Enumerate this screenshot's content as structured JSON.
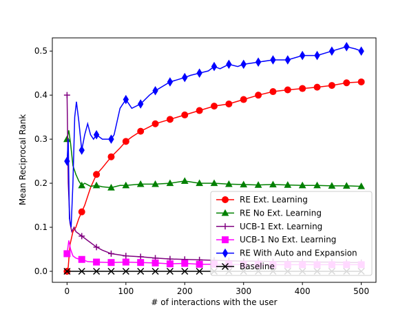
{
  "chart_data": {
    "type": "line",
    "xlabel": "# of interactions with the user",
    "ylabel": "Mean Reciprocal Rank",
    "xlim": [
      -25,
      525
    ],
    "ylim": [
      -0.025,
      0.53
    ],
    "xticks": [
      0,
      100,
      200,
      300,
      400,
      500
    ],
    "yticks": [
      0.0,
      0.1,
      0.2,
      0.3,
      0.4,
      0.5
    ],
    "xtick_labels": [
      "0",
      "100",
      "200",
      "300",
      "400",
      "500"
    ],
    "ytick_labels": [
      "0.0",
      "0.1",
      "0.2",
      "0.3",
      "0.4",
      "0.5"
    ],
    "legend_position": "lower-right",
    "series": [
      {
        "name": "RE Ext. Learning",
        "color": "#ff0000",
        "marker": "circle",
        "points": [
          [
            0,
            0
          ],
          [
            2,
            0.01
          ],
          [
            5,
            0.06
          ],
          [
            10,
            0.09
          ],
          [
            15,
            0.1
          ],
          [
            20,
            0.12
          ],
          [
            25,
            0.135
          ],
          [
            30,
            0.15
          ],
          [
            40,
            0.19
          ],
          [
            50,
            0.22
          ],
          [
            60,
            0.235
          ],
          [
            75,
            0.26
          ],
          [
            90,
            0.28
          ],
          [
            100,
            0.295
          ],
          [
            110,
            0.305
          ],
          [
            125,
            0.318
          ],
          [
            140,
            0.328
          ],
          [
            150,
            0.335
          ],
          [
            175,
            0.345
          ],
          [
            200,
            0.355
          ],
          [
            225,
            0.365
          ],
          [
            250,
            0.375
          ],
          [
            275,
            0.38
          ],
          [
            300,
            0.39
          ],
          [
            325,
            0.4
          ],
          [
            350,
            0.408
          ],
          [
            375,
            0.412
          ],
          [
            400,
            0.415
          ],
          [
            425,
            0.418
          ],
          [
            450,
            0.422
          ],
          [
            475,
            0.428
          ],
          [
            500,
            0.43
          ]
        ]
      },
      {
        "name": "RE No Ext. Learning",
        "color": "#008000",
        "marker": "triangle",
        "points": [
          [
            0,
            0.3
          ],
          [
            3,
            0.32
          ],
          [
            6,
            0.29
          ],
          [
            10,
            0.24
          ],
          [
            15,
            0.22
          ],
          [
            20,
            0.205
          ],
          [
            25,
            0.195
          ],
          [
            30,
            0.2
          ],
          [
            40,
            0.193
          ],
          [
            50,
            0.195
          ],
          [
            60,
            0.192
          ],
          [
            75,
            0.19
          ],
          [
            90,
            0.195
          ],
          [
            100,
            0.195
          ],
          [
            125,
            0.198
          ],
          [
            150,
            0.198
          ],
          [
            175,
            0.2
          ],
          [
            200,
            0.205
          ],
          [
            225,
            0.2
          ],
          [
            250,
            0.2
          ],
          [
            275,
            0.198
          ],
          [
            300,
            0.197
          ],
          [
            325,
            0.196
          ],
          [
            350,
            0.197
          ],
          [
            375,
            0.196
          ],
          [
            400,
            0.195
          ],
          [
            425,
            0.195
          ],
          [
            450,
            0.194
          ],
          [
            475,
            0.194
          ],
          [
            500,
            0.193
          ]
        ]
      },
      {
        "name": "UCB-1 Ext. Learning",
        "color": "#800080",
        "marker": "plus",
        "points": [
          [
            0,
            0.4
          ],
          [
            2,
            0.2
          ],
          [
            5,
            0.11
          ],
          [
            8,
            0.09
          ],
          [
            12,
            0.1
          ],
          [
            15,
            0.09
          ],
          [
            20,
            0.085
          ],
          [
            25,
            0.08
          ],
          [
            30,
            0.075
          ],
          [
            40,
            0.065
          ],
          [
            50,
            0.055
          ],
          [
            60,
            0.048
          ],
          [
            75,
            0.04
          ],
          [
            90,
            0.037
          ],
          [
            100,
            0.035
          ],
          [
            125,
            0.033
          ],
          [
            150,
            0.03
          ],
          [
            175,
            0.028
          ],
          [
            200,
            0.027
          ],
          [
            225,
            0.026
          ],
          [
            250,
            0.025
          ],
          [
            275,
            0.024
          ],
          [
            300,
            0.023
          ],
          [
            325,
            0.023
          ],
          [
            350,
            0.022
          ],
          [
            375,
            0.022
          ],
          [
            400,
            0.022
          ],
          [
            425,
            0.021
          ],
          [
            450,
            0.021
          ],
          [
            475,
            0.02
          ],
          [
            500,
            0.02
          ]
        ]
      },
      {
        "name": "UCB-1 No Ext. Learning",
        "color": "#ff00ff",
        "marker": "square",
        "points": [
          [
            0,
            0.04
          ],
          [
            3,
            0.07
          ],
          [
            6,
            0.05
          ],
          [
            10,
            0.035
          ],
          [
            15,
            0.03
          ],
          [
            20,
            0.028
          ],
          [
            25,
            0.027
          ],
          [
            35,
            0.022
          ],
          [
            50,
            0.021
          ],
          [
            75,
            0.02
          ],
          [
            100,
            0.021
          ],
          [
            125,
            0.02
          ],
          [
            150,
            0.019
          ],
          [
            175,
            0.017
          ],
          [
            200,
            0.018
          ],
          [
            225,
            0.016
          ],
          [
            250,
            0.016
          ],
          [
            275,
            0.016
          ],
          [
            300,
            0.015
          ],
          [
            325,
            0.015
          ],
          [
            350,
            0.015
          ],
          [
            375,
            0.015
          ],
          [
            400,
            0.015
          ],
          [
            425,
            0.015
          ],
          [
            450,
            0.015
          ],
          [
            475,
            0.015
          ],
          [
            500,
            0.015
          ]
        ]
      },
      {
        "name": "RE With Auto and Expansion",
        "color": "#0000ff",
        "marker": "diamond",
        "points": [
          [
            0,
            0.25
          ],
          [
            2,
            0.3
          ],
          [
            4,
            0.12
          ],
          [
            7,
            0.1
          ],
          [
            10,
            0.2
          ],
          [
            13,
            0.35
          ],
          [
            16,
            0.385
          ],
          [
            20,
            0.34
          ],
          [
            25,
            0.275
          ],
          [
            30,
            0.31
          ],
          [
            35,
            0.335
          ],
          [
            40,
            0.31
          ],
          [
            45,
            0.3
          ],
          [
            50,
            0.31
          ],
          [
            60,
            0.3
          ],
          [
            70,
            0.3
          ],
          [
            75,
            0.3
          ],
          [
            80,
            0.31
          ],
          [
            85,
            0.34
          ],
          [
            90,
            0.37
          ],
          [
            100,
            0.39
          ],
          [
            110,
            0.37
          ],
          [
            125,
            0.38
          ],
          [
            140,
            0.4
          ],
          [
            150,
            0.41
          ],
          [
            175,
            0.43
          ],
          [
            200,
            0.44
          ],
          [
            210,
            0.445
          ],
          [
            225,
            0.45
          ],
          [
            240,
            0.455
          ],
          [
            250,
            0.465
          ],
          [
            260,
            0.46
          ],
          [
            275,
            0.47
          ],
          [
            290,
            0.465
          ],
          [
            300,
            0.47
          ],
          [
            325,
            0.475
          ],
          [
            350,
            0.48
          ],
          [
            375,
            0.48
          ],
          [
            400,
            0.49
          ],
          [
            425,
            0.49
          ],
          [
            450,
            0.5
          ],
          [
            475,
            0.51
          ],
          [
            490,
            0.505
          ],
          [
            500,
            0.5
          ]
        ]
      },
      {
        "name": "Baseline",
        "color": "#000000",
        "marker": "x",
        "points": [
          [
            0,
            0
          ],
          [
            500,
            0
          ]
        ]
      }
    ]
  }
}
